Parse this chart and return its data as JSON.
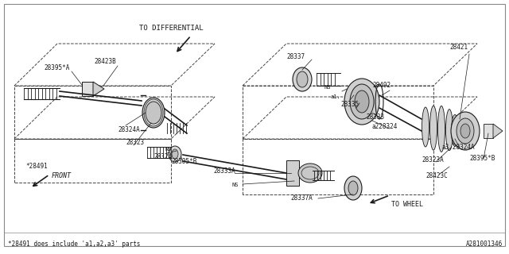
{
  "bg_color": "#ffffff",
  "line_color": "#1a1a1a",
  "footer_left": "*28491 does include 'a1,a2,a3' parts",
  "footer_right": "A281001346",
  "label_to_differential": "TO DIFFERENTIAL",
  "label_to_wheel": "TO WHEEL",
  "label_front": "FRONT",
  "figsize": [
    6.4,
    3.2
  ],
  "dpi": 100
}
